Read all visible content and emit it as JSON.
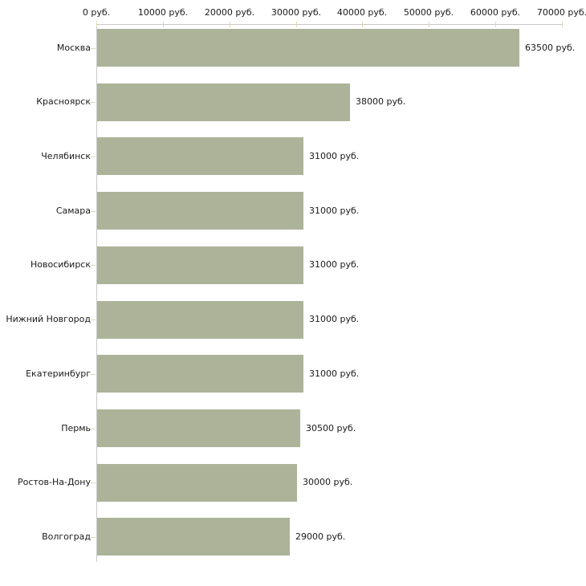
{
  "chart_data": {
    "type": "bar",
    "orientation": "horizontal",
    "title": "",
    "xlabel": "",
    "ylabel": "",
    "unit_suffix": "руб.",
    "categories": [
      "Москва",
      "Красноярск",
      "Челябинск",
      "Самара",
      "Новосибирск",
      "Нижний Новгород",
      "Екатеринбург",
      "Пермь",
      "Ростов-На-Дону",
      "Волгоград"
    ],
    "values": [
      63500,
      38000,
      31000,
      31000,
      31000,
      31000,
      31000,
      30500,
      30000,
      29000
    ],
    "value_labels": [
      "63500 руб.",
      "38000 руб.",
      "31000 руб.",
      "31000 руб.",
      "31000 руб.",
      "31000 руб.",
      "31000 руб.",
      "30500 руб.",
      "30000 руб.",
      "29000 руб."
    ],
    "x_axis": {
      "position": "top",
      "range": [
        0,
        70000
      ],
      "ticks": [
        0,
        10000,
        20000,
        30000,
        40000,
        50000,
        60000,
        70000
      ],
      "tick_labels": [
        "0 руб.",
        "10000 руб.",
        "20000 руб.",
        "30000 руб.",
        "40000 руб.",
        "50000 руб.",
        "60000 руб.",
        "70000 руб."
      ]
    },
    "grid": false,
    "legend": false
  },
  "colors": {
    "bar": "#acb399",
    "axis_line": "#c8c8c8",
    "tick": "#d8d8b0",
    "text": "#1a1a1a",
    "background": "#ffffff"
  }
}
